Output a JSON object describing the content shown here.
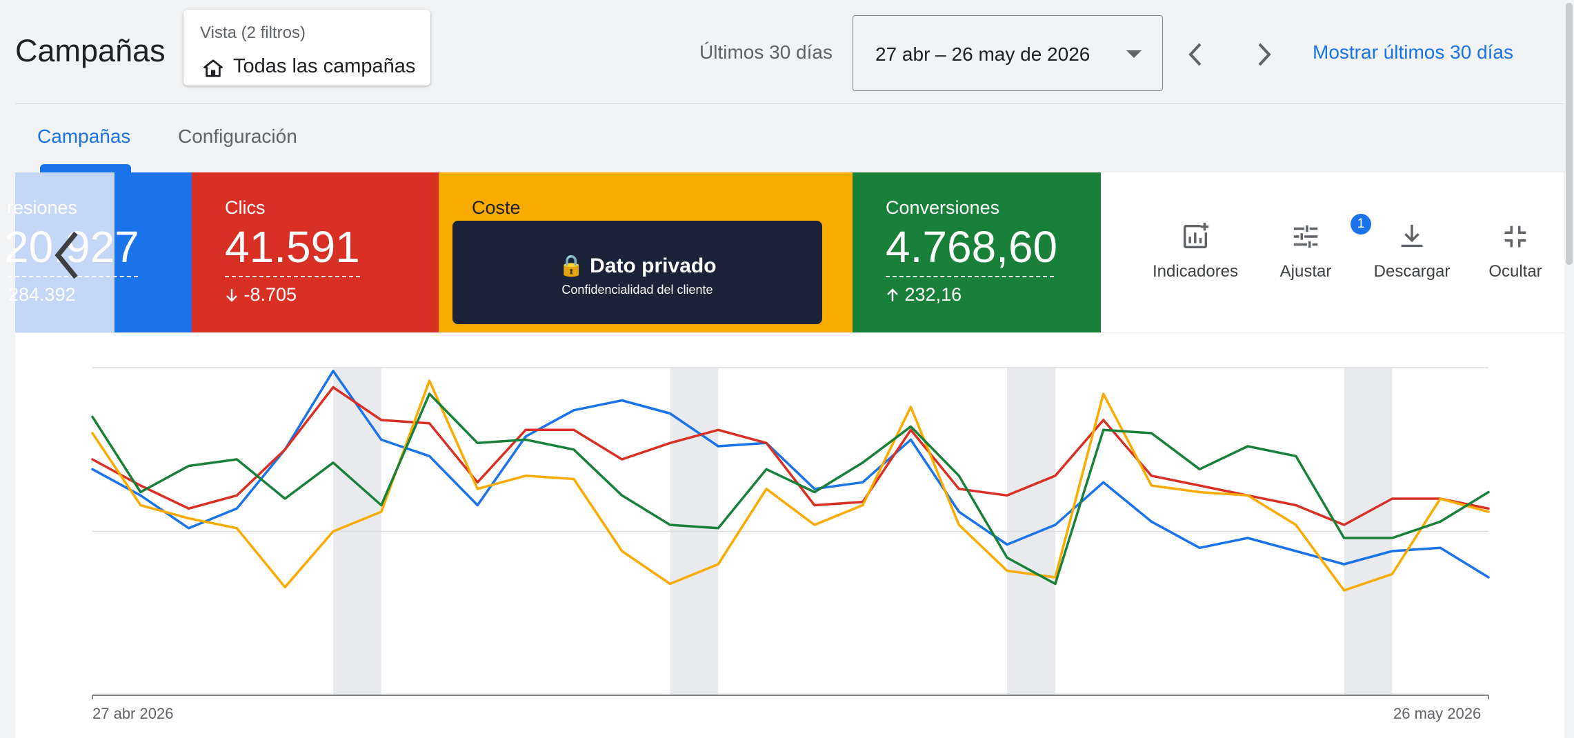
{
  "header": {
    "title": "Campañas",
    "view": {
      "subtitle": "Vista (2 filtros)",
      "name": "Todas las campañas"
    },
    "range_label": "Últimos 30 días",
    "date_range": "27 abr – 26 may de 2026",
    "show_last": "Mostrar últimos 30 días"
  },
  "tabs": [
    {
      "label": "Campañas",
      "active": true
    },
    {
      "label": "Configuración",
      "active": false
    }
  ],
  "metrics": {
    "impressions": {
      "label": "resiones",
      "value": "20.927",
      "delta": "284.392"
    },
    "clicks": {
      "label": "Clics",
      "value": "41.591",
      "delta": "-8.705",
      "delta_icon": "arrow-down-icon"
    },
    "cost": {
      "label": "Coste",
      "private_title": "Dato privado",
      "private_subtitle": "Confidencialidad del cliente",
      "lock_icon": "🔒"
    },
    "conversions": {
      "label": "Conversiones",
      "value": "4.768,60",
      "delta": "232,16",
      "delta_icon": "arrow-up-icon"
    }
  },
  "tools": {
    "indicators": "Indicadores",
    "adjust": "Ajustar",
    "adjust_badge": "1",
    "download": "Descargar",
    "hide": "Ocultar"
  },
  "colors": {
    "blue": "#1a73e8",
    "red": "#d93025",
    "yellow": "#f9ab00",
    "green": "#188038"
  },
  "chart_data": {
    "type": "line",
    "x_start_label": "27 abr 2026",
    "x_end_label": "26 may 2026",
    "ylim": [
      0,
      100
    ],
    "weekend_bands": [
      [
        5,
        6
      ],
      [
        12,
        13
      ],
      [
        19,
        20
      ],
      [
        26,
        27
      ]
    ],
    "series": [
      {
        "color": "#1a73e8",
        "values": [
          69,
          61,
          51,
          57,
          75,
          99,
          78,
          73,
          58,
          79,
          87,
          90,
          86,
          76,
          77,
          63,
          65,
          78,
          56,
          46,
          52,
          65,
          53,
          45,
          48,
          44,
          40,
          44,
          45,
          36
        ]
      },
      {
        "color": "#d93025",
        "values": [
          72,
          64,
          57,
          61,
          75,
          94,
          84,
          83,
          65,
          81,
          81,
          72,
          77,
          81,
          77,
          58,
          59,
          81,
          63,
          61,
          67,
          84,
          67,
          64,
          61,
          58,
          52,
          60,
          60,
          57
        ]
      },
      {
        "color": "#f9ab00",
        "values": [
          80,
          58,
          54,
          51,
          33,
          50,
          56,
          96,
          63,
          67,
          66,
          44,
          34,
          40,
          63,
          52,
          58,
          88,
          52,
          38,
          36,
          92,
          64,
          62,
          61,
          52,
          32,
          37,
          60,
          56
        ]
      },
      {
        "color": "#188038",
        "values": [
          85,
          62,
          70,
          72,
          60,
          71,
          58,
          92,
          77,
          78,
          75,
          61,
          52,
          51,
          69,
          62,
          71,
          82,
          67,
          42,
          34,
          81,
          80,
          69,
          76,
          73,
          48,
          48,
          53,
          62
        ]
      }
    ]
  }
}
